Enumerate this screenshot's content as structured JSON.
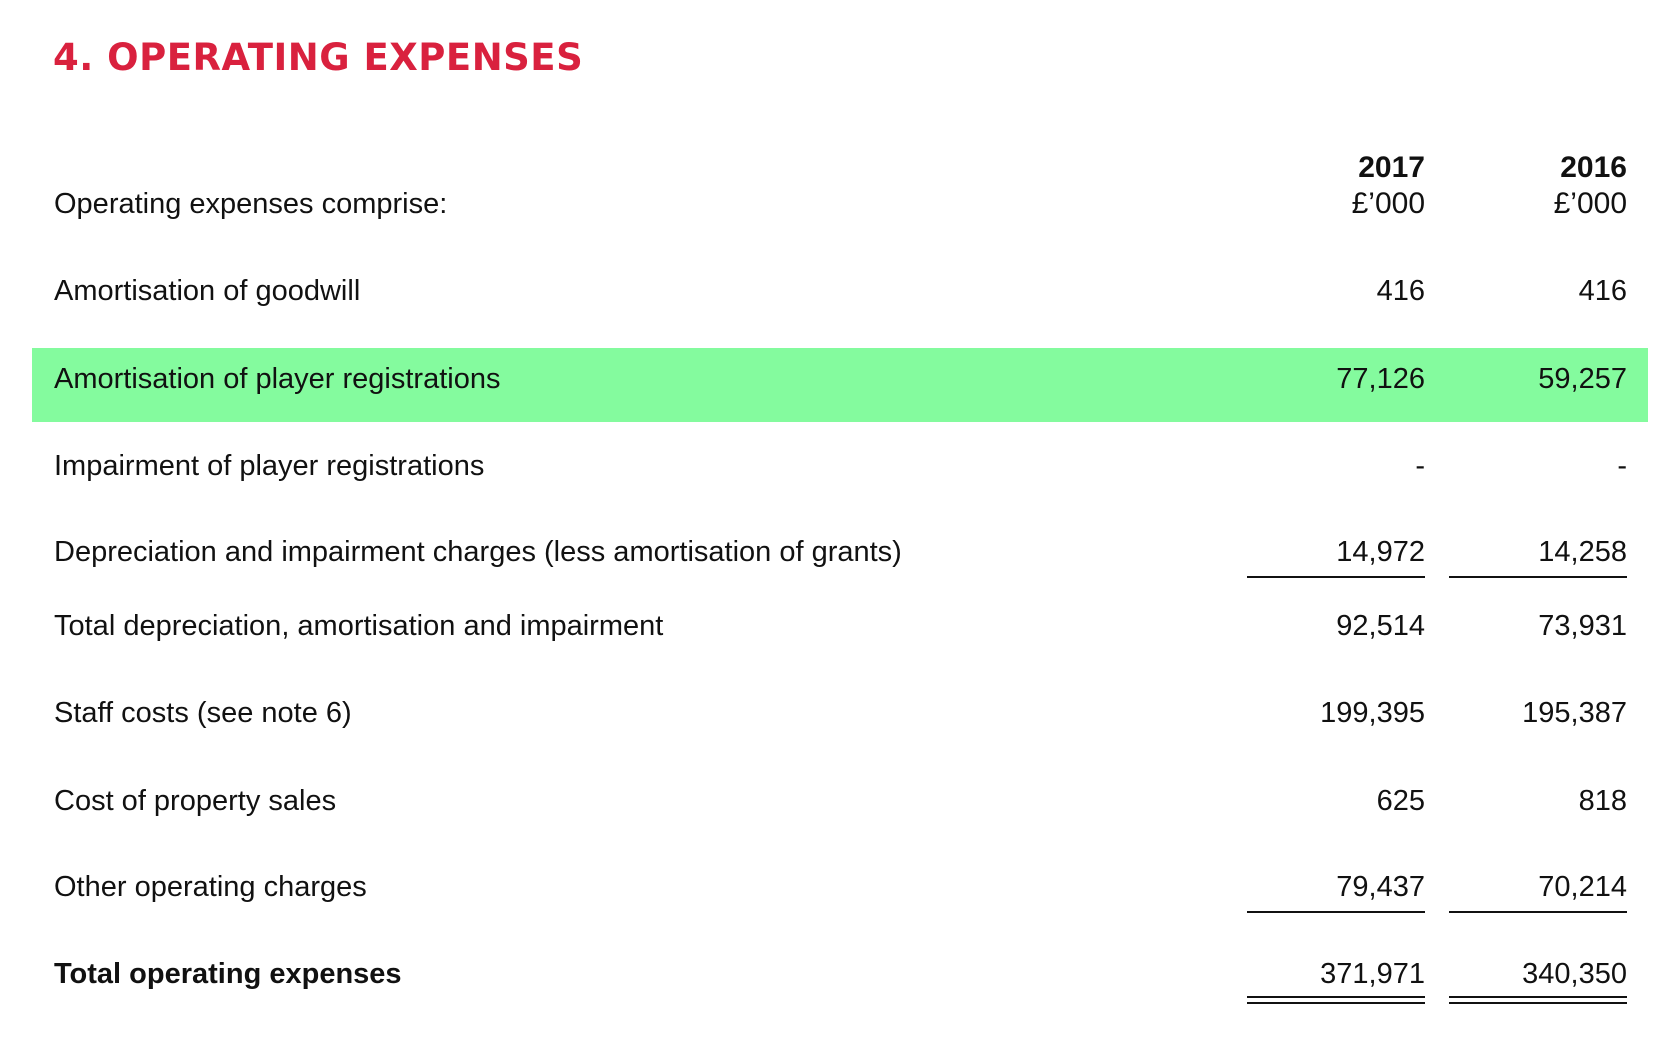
{
  "title": "4. OPERATING EXPENSES",
  "intro": "Operating expenses comprise:",
  "columns": [
    {
      "year": "2017",
      "unit": "£’000"
    },
    {
      "year": "2016",
      "unit": "£’000"
    }
  ],
  "colors": {
    "title": "#d9213e",
    "highlight": "#84fb9e",
    "text": "#111111"
  },
  "rows": [
    {
      "label": "Amortisation of goodwill",
      "v2017": "416",
      "v2016": "416"
    },
    {
      "label": "Amortisation of player registrations",
      "v2017": "77,126",
      "v2016": "59,257",
      "highlighted": true
    },
    {
      "label": "Impairment of player registrations",
      "v2017": "-",
      "v2016": "-"
    },
    {
      "label": "Depreciation and impairment charges (less amortisation of grants)",
      "v2017": "14,972",
      "v2016": "14,258"
    },
    {
      "label": "Total depreciation, amortisation and impairment",
      "v2017": "92,514",
      "v2016": "73,931"
    },
    {
      "label": "Staff costs (see note 6)",
      "v2017": "199,395",
      "v2016": "195,387"
    },
    {
      "label": "Cost of property sales",
      "v2017": "625",
      "v2016": "818"
    },
    {
      "label": "Other operating charges",
      "v2017": "79,437",
      "v2016": "70,214"
    },
    {
      "label": "Total operating expenses",
      "v2017": "371,971",
      "v2016": "340,350"
    }
  ]
}
